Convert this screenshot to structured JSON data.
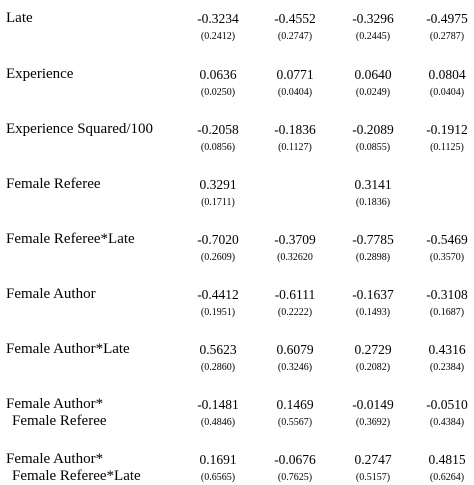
{
  "rows": [
    {
      "label": "Late",
      "label2": "",
      "coef": [
        "-0.3234",
        "-0.4552",
        "-0.3296",
        "-0.4975"
      ],
      "se": [
        "(0.2412)",
        "(0.2747)",
        "(0.2445)",
        "(0.2787)"
      ]
    },
    {
      "label": "Experience",
      "label2": "",
      "coef": [
        "0.0636",
        "0.0771",
        "0.0640",
        "0.0804"
      ],
      "se": [
        "(0.0250)",
        "(0.0404)",
        "(0.0249)",
        "(0.0404)"
      ]
    },
    {
      "label": "Experience Squared/100",
      "label2": "",
      "coef": [
        "-0.2058",
        "-0.1836",
        "-0.2089",
        "-0.1912"
      ],
      "se": [
        "(0.0856)",
        "(0.1127)",
        "(0.0855)",
        "(0.1125)"
      ]
    },
    {
      "label": "Female Referee",
      "label2": "",
      "coef": [
        "0.3291",
        "",
        "0.3141",
        ""
      ],
      "se": [
        "(0.1711)",
        "",
        "(0.1836)",
        ""
      ]
    },
    {
      "label": "Female Referee*Late",
      "label2": "",
      "coef": [
        "-0.7020",
        "-0.3709",
        "-0.7785",
        "-0.5469"
      ],
      "se": [
        "(0.2609)",
        "(0.32620",
        "(0.2898)",
        "(0.3570)"
      ]
    },
    {
      "label": "Female Author",
      "label2": "",
      "coef": [
        "-0.4412",
        "-0.6111",
        "-0.1637",
        "-0.3108"
      ],
      "se": [
        "(0.1951)",
        "(0.2222)",
        "(0.1493)",
        "(0.1687)"
      ]
    },
    {
      "label": "Female Author*Late",
      "label2": "",
      "coef": [
        "0.5623",
        "0.6079",
        "0.2729",
        "0.4316"
      ],
      "se": [
        "(0.2860)",
        "(0.3246)",
        "(0.2082)",
        "(0.2384)"
      ]
    },
    {
      "label": "Female Author*",
      "label2": "Female Referee",
      "coef": [
        "-0.1481",
        "0.1469",
        "-0.0149",
        "-0.0510"
      ],
      "se": [
        "(0.4846)",
        "(0.5567)",
        "(0.3692)",
        "(0.4384)"
      ]
    },
    {
      "label": "Female Author*",
      "label2": "Female Referee*Late",
      "coef": [
        "0.1691",
        "-0.0676",
        "0.2747",
        "0.4815"
      ],
      "se": [
        "(0.6565)",
        "(0.7625)",
        "(0.5157)",
        "(0.6264)"
      ]
    }
  ]
}
